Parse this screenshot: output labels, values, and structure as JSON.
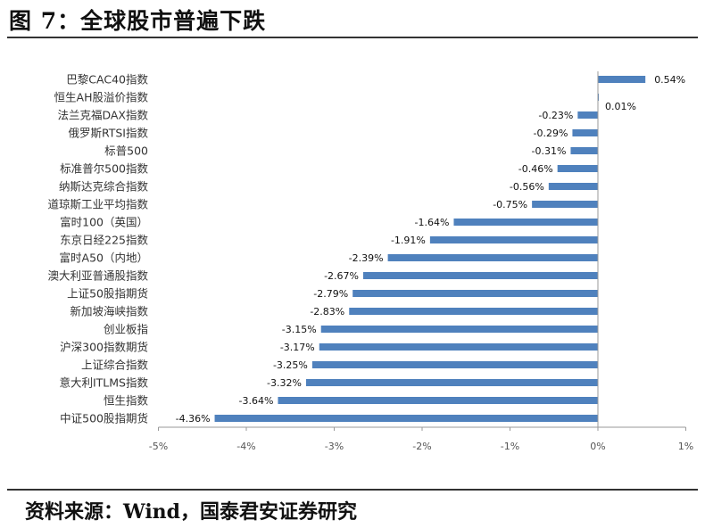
{
  "header": {
    "title": "图 7：全球股市普遍下跌"
  },
  "footer": {
    "source": "资料来源：Wind，国泰君安证券研究"
  },
  "colors": {
    "bar": "#4f81bd",
    "axis": "#999999"
  },
  "chart_data": {
    "type": "bar",
    "orientation": "horizontal",
    "title": "",
    "xlabel": "",
    "ylabel": "",
    "xlim": [
      -5,
      1
    ],
    "x_ticks": [
      "-5%",
      "-4%",
      "-3%",
      "-2%",
      "-1%",
      "0%",
      "1%"
    ],
    "grid": false,
    "categories": [
      "巴黎CAC40指数",
      "恒生AH股溢价指数",
      "法兰克福DAX指数",
      "俄罗斯RTSI指数",
      "标普500",
      "标准普尔500指数",
      "纳斯达克综合指数",
      "道琼斯工业平均指数",
      "富时100（英国）",
      "东京日经225指数",
      "富时A50（内地）",
      "澳大利亚普通股指数",
      "上证50股指期货",
      "新加坡海峡指数",
      "创业板指",
      "沪深300指数期货",
      "上证综合指数",
      "意大利ITLMS指数",
      "恒生指数",
      "中证500股指期货"
    ],
    "values": [
      0.54,
      0.01,
      -0.23,
      -0.29,
      -0.31,
      -0.46,
      -0.56,
      -0.75,
      -1.64,
      -1.91,
      -2.39,
      -2.67,
      -2.79,
      -2.83,
      -3.15,
      -3.17,
      -3.25,
      -3.32,
      -3.64,
      -4.36
    ],
    "labels": [
      "0.54%",
      "0.01%",
      "-0.23%",
      "-0.29%",
      "-0.31%",
      "-0.46%",
      "-0.56%",
      "-0.75%",
      "-1.64%",
      "-1.91%",
      "-2.39%",
      "-2.67%",
      "-2.79%",
      "-2.83%",
      "-3.15%",
      "-3.17%",
      "-3.25%",
      "-3.32%",
      "-3.64%",
      "-4.36%"
    ]
  }
}
